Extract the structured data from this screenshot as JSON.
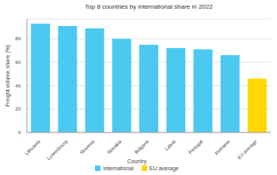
{
  "chart_data": {
    "type": "bar",
    "title": "Top 8 countries by international share in 2022",
    "y_label": "Freight volume share (%)",
    "legend_title": "Country",
    "categories": [
      "Lithuania",
      "Luxembourg",
      "Slovenia",
      "Slovakia",
      "Bulgaria",
      "Latvia",
      "Portugal",
      "Romania",
      "EU average"
    ],
    "series": [
      {
        "name": "International",
        "color": "#4cc9f0",
        "values": [
          93,
          91,
          89,
          80,
          75,
          72,
          71,
          66,
          null
        ]
      },
      {
        "name": "EU average",
        "color": "#ffd700",
        "values": [
          null,
          null,
          null,
          null,
          null,
          null,
          null,
          null,
          46
        ]
      }
    ],
    "ylim": [
      0,
      97
    ],
    "yticks": [
      0,
      20,
      40,
      60,
      80
    ],
    "grid": true,
    "legend": "bottom"
  }
}
